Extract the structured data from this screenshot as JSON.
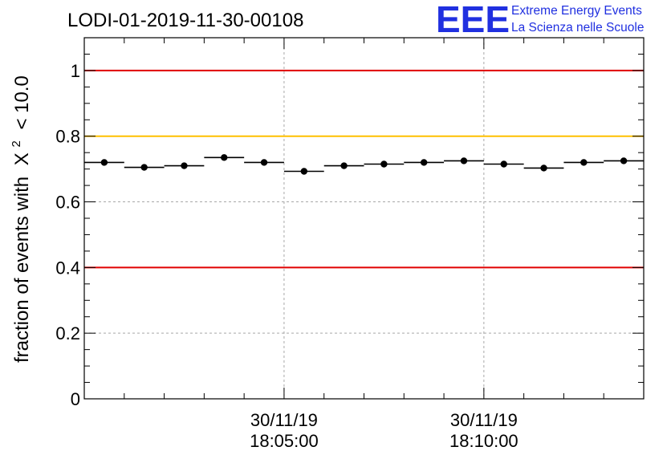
{
  "chart_data": {
    "type": "scatter",
    "title": "LODI-01-2019-11-30-00108",
    "ylabel_prefix": "fraction of events with",
    "ylabel_symbol": "X",
    "ylabel_superscript": "2",
    "ylabel_suffix": "< 10.0",
    "xlabel": "",
    "ylim": [
      0,
      1.1
    ],
    "y_ticks": [
      0,
      0.2,
      0.4,
      0.6,
      0.8,
      1
    ],
    "y_tick_labels": [
      "0",
      "0.2",
      "0.4",
      "0.6",
      "0.8",
      "1"
    ],
    "x_range_minutes": [
      0,
      14
    ],
    "x_major_ticks": [
      {
        "x": 5,
        "date": "30/11/19",
        "time": "18:05:00"
      },
      {
        "x": 10,
        "date": "30/11/19",
        "time": "18:10:00"
      }
    ],
    "x_minor_ticks": [
      1,
      2,
      3,
      4,
      6,
      7,
      8,
      9,
      11,
      12,
      13,
      14
    ],
    "grid": true,
    "bin_width_minutes": 1,
    "points": {
      "x": [
        0.5,
        1.5,
        2.5,
        3.5,
        4.5,
        5.5,
        6.5,
        7.5,
        8.5,
        9.5,
        10.5,
        11.5,
        12.5,
        13.5
      ],
      "y": [
        0.72,
        0.705,
        0.71,
        0.735,
        0.72,
        0.693,
        0.71,
        0.715,
        0.72,
        0.725,
        0.715,
        0.703,
        0.72,
        0.725
      ]
    },
    "reference_lines": [
      {
        "y": 1.0,
        "color": "#e00000"
      },
      {
        "y": 0.8,
        "color": "#ffc000"
      },
      {
        "y": 0.4,
        "color": "#e00000"
      }
    ]
  },
  "logo": {
    "letters": "EEE",
    "line1": "Extreme Energy Events",
    "line2": "La Scienza nelle Scuole",
    "color": "#2030e0"
  }
}
